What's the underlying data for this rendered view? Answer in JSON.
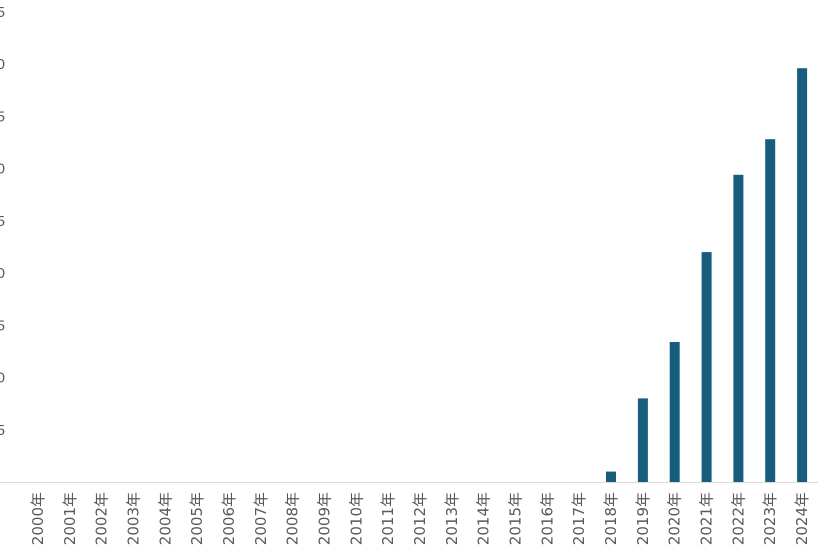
{
  "chart_data": {
    "type": "bar",
    "categories": [
      "2000年",
      "2001年",
      "2002年",
      "2003年",
      "2004年",
      "2005年",
      "2006年",
      "2007年",
      "2008年",
      "2009年",
      "2010年",
      "2011年",
      "2012年",
      "2013年",
      "2014年",
      "2015年",
      "2016年",
      "2017年",
      "2018年",
      "2019年",
      "2020年",
      "2021年",
      "2022年",
      "2023年",
      "2024年"
    ],
    "values": [
      0,
      0,
      0,
      0,
      0,
      0,
      0,
      0,
      0,
      0,
      0,
      0,
      0,
      0,
      0,
      0,
      0,
      0,
      0.5,
      4,
      6.7,
      11,
      14.7,
      16.4,
      19.8
    ],
    "y_ticks": [
      "5",
      "0",
      "5",
      "0",
      "5",
      "0",
      "5",
      "0",
      "5",
      ""
    ],
    "ylim": [
      0,
      22.5
    ],
    "title": "",
    "xlabel": "",
    "ylabel": "",
    "grid": false,
    "bar_color": "#175e7e",
    "axis_color": "#d9d9d9",
    "label_color": "#595959"
  }
}
